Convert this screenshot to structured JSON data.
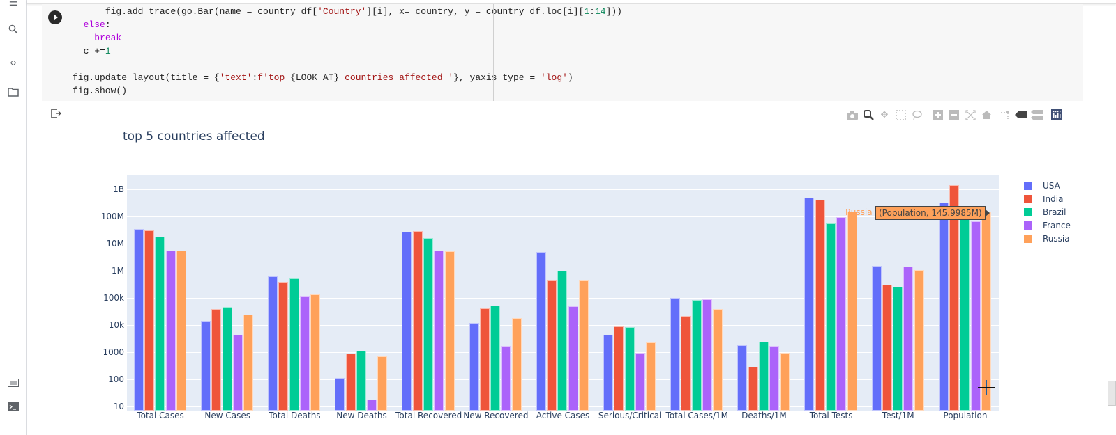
{
  "rail": {
    "icons": [
      "toc-icon",
      "search-icon",
      "code-snippets-icon",
      "files-icon",
      "command-palette-icon",
      "terminal-icon"
    ]
  },
  "code_cell": {
    "lines": [
      "      fig.add_trace(go.Bar(name = country_df['Country'][i], x= country, y = country_df.loc[i][1:14]))",
      "  else:",
      "    break",
      "  c +=1",
      "",
      "fig.update_layout(title = {'text':f'top {LOOK_AT} countries affected '}, yaxis_type = 'log')",
      "fig.show()"
    ]
  },
  "modebar": {
    "buttons": [
      "Download plot as a png",
      "Zoom",
      "Pan",
      "Box Select",
      "Lasso Select",
      "Zoom in",
      "Zoom out",
      "Autoscale",
      "Reset axes",
      "Toggle Spike Lines",
      "Show closest data on hover",
      "Compare data on hover",
      "Produced with Plotly"
    ]
  },
  "hover": {
    "name": "Russia",
    "text": "(Population, 145.9985M)"
  },
  "chart_data": {
    "type": "bar",
    "title": "top 5 countries affected",
    "xlabel": "",
    "ylabel": "",
    "yaxis_type": "log",
    "ylim": [
      6,
      2500000000
    ],
    "yticks": [
      "10",
      "100",
      "1000",
      "10k",
      "100k",
      "1M",
      "10M",
      "100M",
      "1B"
    ],
    "grid": true,
    "legend_position": "right",
    "barmode": "group",
    "categories": [
      "Total Cases",
      "New Cases",
      "Total Deaths",
      "New Deaths",
      "Total Recovered",
      "New Recovered",
      "Active Cases",
      "Serious/Critical",
      "Total Cases/1M",
      "Deaths/1M",
      "Total Tests",
      "Test/1M",
      "Population"
    ],
    "series": [
      {
        "name": "USA",
        "color": "#636efa",
        "values": [
          34000000,
          14000,
          610000,
          110,
          28000000,
          12000,
          4900000,
          4300,
          102000,
          1800,
          500000000,
          1500000,
          332000000
        ]
      },
      {
        "name": "India",
        "color": "#ef553b",
        "values": [
          30000000,
          40000,
          400000,
          870,
          29000000,
          42000,
          450000,
          8900,
          22000,
          290,
          410000000,
          300000,
          1390000000
        ]
      },
      {
        "name": "Brazil",
        "color": "#00cc96",
        "values": [
          18000000,
          47000,
          520000,
          1100,
          16500000,
          51000,
          1000000,
          8300,
          86000,
          2400,
          54000000,
          250000,
          214000000
        ]
      },
      {
        "name": "France",
        "color": "#ab63fa",
        "values": [
          5700000,
          4500,
          111000,
          18,
          5600000,
          1700,
          50000,
          940,
          87000,
          1700,
          94000000,
          1450000,
          65000000
        ]
      },
      {
        "name": "Russia",
        "color": "#ffa15a",
        "values": [
          5600000,
          24000,
          137000,
          720,
          5100000,
          18000,
          430000,
          2300,
          38000,
          940,
          150000000,
          1030000,
          145998500
        ]
      }
    ]
  }
}
